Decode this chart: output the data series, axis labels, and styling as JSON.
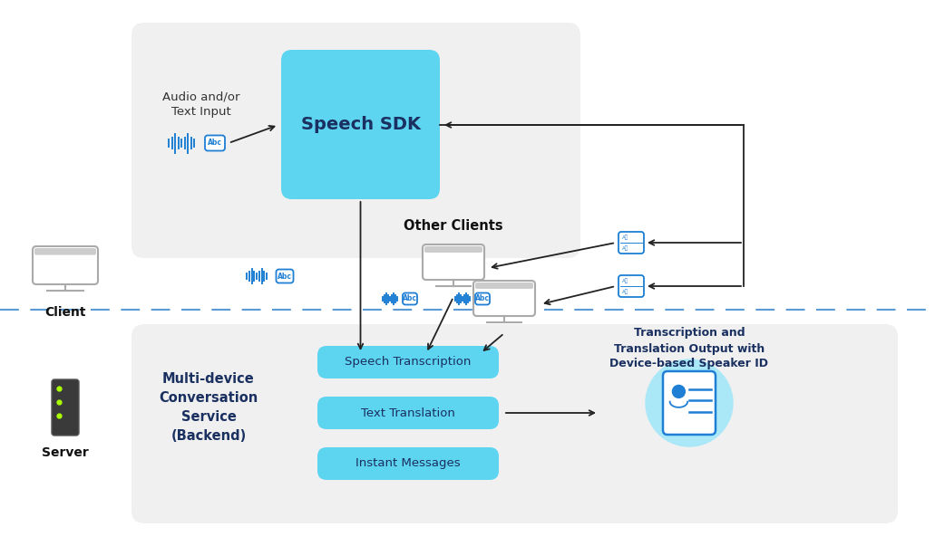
{
  "bg_color": "#ffffff",
  "client_section_bg": "#f0f0f0",
  "server_section_bg": "#f0f0f0",
  "speech_sdk_color": "#5dd4f0",
  "service_box_color": "#5dd4f0",
  "dashed_line_color": "#5b9bd5",
  "arrow_color": "#222222",
  "client_label": "Client",
  "server_label": "Server",
  "speech_sdk_label": "Speech SDK",
  "other_clients_label": "Other Clients",
  "audio_text_label": "Audio and/or\nText Input",
  "multi_device_label": "Multi-device\nConversation\nService\n(Backend)",
  "speech_transcription_label": "Speech Transcription",
  "text_translation_label": "Text Translation",
  "instant_messages_label": "Instant Messages",
  "transcription_output_label": "Transcription and\nTranslation Output with\nDevice-based Speaker ID"
}
